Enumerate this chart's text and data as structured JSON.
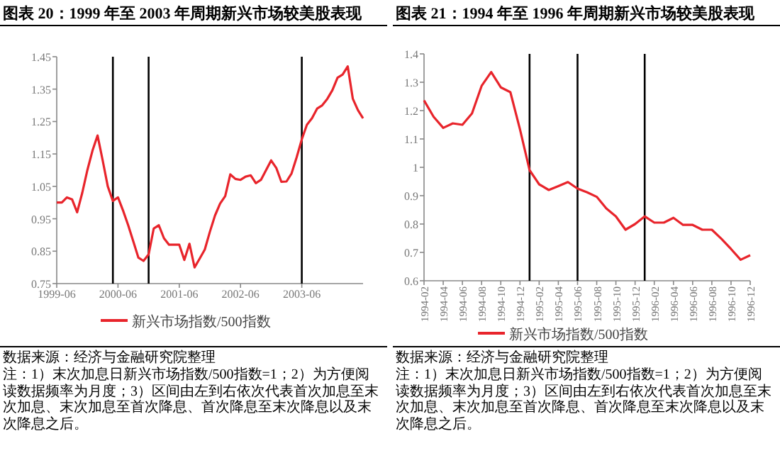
{
  "chart_data": [
    {
      "type": "line",
      "title": "图表 20：1999 年至 2003 年周期新兴市场较美股表现",
      "x": [
        "1999-06",
        "1999-07",
        "1999-08",
        "1999-09",
        "1999-10",
        "1999-11",
        "1999-12",
        "2000-01",
        "2000-02",
        "2000-03",
        "2000-04",
        "2000-05",
        "2000-06",
        "2000-07",
        "2000-08",
        "2000-09",
        "2000-10",
        "2000-11",
        "2000-12",
        "2001-01",
        "2001-02",
        "2001-03",
        "2001-04",
        "2001-05",
        "2001-06",
        "2001-07",
        "2001-08",
        "2001-09",
        "2001-10",
        "2001-11",
        "2001-12",
        "2002-01",
        "2002-02",
        "2002-03",
        "2002-04",
        "2002-05",
        "2002-06",
        "2002-07",
        "2002-08",
        "2002-09",
        "2002-10",
        "2002-11",
        "2002-12",
        "2003-01",
        "2003-02",
        "2003-03",
        "2003-04",
        "2003-05",
        "2003-06",
        "2003-07",
        "2003-08",
        "2003-09",
        "2003-10",
        "2003-11",
        "2003-12",
        "2004-01",
        "2004-02",
        "2004-03",
        "2004-04",
        "2004-05",
        "2004-06"
      ],
      "series": [
        {
          "name": "新兴市场指数/500指数",
          "color": "#e8242b",
          "values": [
            1.0,
            1.0,
            1.016,
            1.01,
            0.97,
            1.03,
            1.1,
            1.16,
            1.207,
            1.13,
            1.05,
            1.005,
            1.016,
            0.975,
            0.93,
            0.88,
            0.83,
            0.82,
            0.84,
            0.92,
            0.93,
            0.89,
            0.87,
            0.87,
            0.87,
            0.823,
            0.873,
            0.8,
            0.827,
            0.855,
            0.91,
            0.96,
            0.997,
            1.02,
            1.087,
            1.073,
            1.07,
            1.08,
            1.084,
            1.06,
            1.07,
            1.1,
            1.13,
            1.107,
            1.064,
            1.065,
            1.09,
            1.14,
            1.195,
            1.24,
            1.26,
            1.29,
            1.3,
            1.32,
            1.347,
            1.385,
            1.395,
            1.42,
            1.32,
            1.285,
            1.26
          ]
        }
      ],
      "xlim": [
        "1999-06",
        "2004-06"
      ],
      "xticks": [
        "1999-06",
        "2000-06",
        "2001-06",
        "2002-06",
        "2003-06"
      ],
      "ylim": [
        0.75,
        1.45
      ],
      "yticks": [
        0.75,
        0.85,
        0.95,
        1.05,
        1.15,
        1.25,
        1.35,
        1.45
      ],
      "ref_lines": [
        {
          "axis": "x",
          "value": "2000-05",
          "color": "#000000"
        },
        {
          "axis": "x",
          "value": "2000-12",
          "color": "#000000"
        },
        {
          "axis": "x",
          "value": "2003-06",
          "color": "#000000"
        }
      ],
      "legend": "bottom",
      "marker": "none",
      "line_style": "solid",
      "annotations": [
        "数据来源：经济与金融研究院整理",
        "注：1）末次加息日新兴市场指数/500指数=1；2）为方便阅读数据频率为月度；3）区间由左到右依次代表首次加息至末次加息、末次加息至首次降息、首次降息至末次降息以及末次降息之后。"
      ]
    },
    {
      "type": "line",
      "title": "图表 21：1994 年至 1996 年周期新兴市场较美股表现",
      "x": [
        "1994-02",
        "1994-03",
        "1994-04",
        "1994-05",
        "1994-06",
        "1994-07",
        "1994-08",
        "1994-09",
        "1994-10",
        "1994-11",
        "1994-12",
        "1995-01",
        "1995-02",
        "1995-03",
        "1995-04",
        "1995-05",
        "1995-06",
        "1995-07",
        "1995-08",
        "1995-09",
        "1995-10",
        "1995-11",
        "1995-12",
        "1996-01",
        "1996-02",
        "1996-03",
        "1996-04",
        "1996-05",
        "1996-06",
        "1996-07",
        "1996-08",
        "1996-09",
        "1996-10",
        "1996-11",
        "1996-12"
      ],
      "series": [
        {
          "name": "新兴市场指数/500指数",
          "color": "#e8242b",
          "values": [
            1.236,
            1.178,
            1.139,
            1.155,
            1.15,
            1.19,
            1.287,
            1.336,
            1.282,
            1.265,
            1.134,
            0.99,
            0.94,
            0.92,
            0.934,
            0.948,
            0.925,
            0.912,
            0.896,
            0.855,
            0.827,
            0.78,
            0.8,
            0.827,
            0.805,
            0.805,
            0.822,
            0.797,
            0.797,
            0.78,
            0.78,
            0.748,
            0.712,
            0.674,
            0.69
          ]
        }
      ],
      "xlim": [
        "1994-02",
        "1996-12"
      ],
      "xticks": [
        "1994-02",
        "1994-04",
        "1994-06",
        "1994-08",
        "1994-10",
        "1994-12",
        "1995-02",
        "1995-04",
        "1995-06",
        "1995-08",
        "1995-10",
        "1995-12",
        "1996-02",
        "1996-04",
        "1996-06",
        "1996-08",
        "1996-10",
        "1996-12"
      ],
      "ylim": [
        0.6,
        1.4
      ],
      "yticks": [
        0.6,
        0.7,
        0.8,
        0.9,
        1,
        1.1,
        1.2,
        1.3,
        1.4
      ],
      "ref_lines": [
        {
          "axis": "x",
          "value": "1995-01",
          "color": "#000000"
        },
        {
          "axis": "x",
          "value": "1995-06",
          "color": "#000000"
        },
        {
          "axis": "x",
          "value": "1996-01",
          "color": "#000000"
        }
      ],
      "legend": "bottom",
      "marker": "none",
      "line_style": "solid",
      "annotations": [
        "数据来源：经济与金融研究院整理",
        "注：1）末次加息日新兴市场指数/500指数=1；2）为方便阅读数据频率为月度；3）区间由左到右依次代表首次加息至末次加息、末次加息至首次降息、首次降息至末次降息以及末次降息之后。"
      ]
    }
  ]
}
